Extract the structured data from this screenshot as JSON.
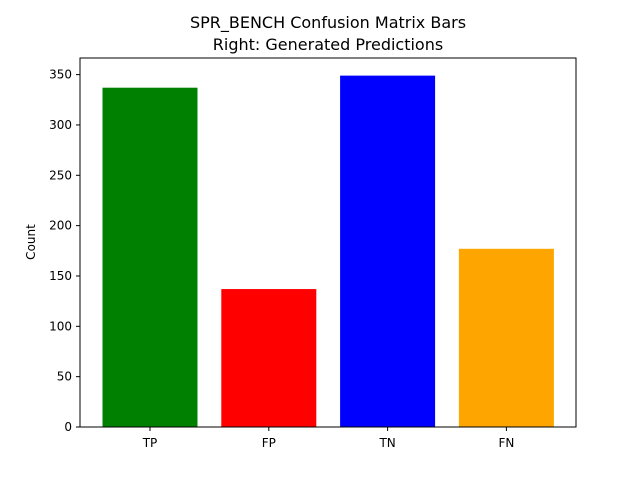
{
  "chart_data": {
    "type": "bar",
    "title": "SPR_BENCH Confusion Matrix Bars",
    "subtitle": "Right: Generated Predictions",
    "xlabel": "",
    "ylabel": "Count",
    "categories": [
      "TP",
      "FP",
      "TN",
      "FN"
    ],
    "values": [
      337,
      137,
      349,
      177
    ],
    "colors": [
      "#008000",
      "#ff0000",
      "#0000ff",
      "#ffa500"
    ],
    "ylim": [
      0,
      366.5
    ],
    "yticks": [
      0,
      50,
      100,
      150,
      200,
      250,
      300,
      350
    ],
    "grid": false,
    "legend": "none"
  }
}
